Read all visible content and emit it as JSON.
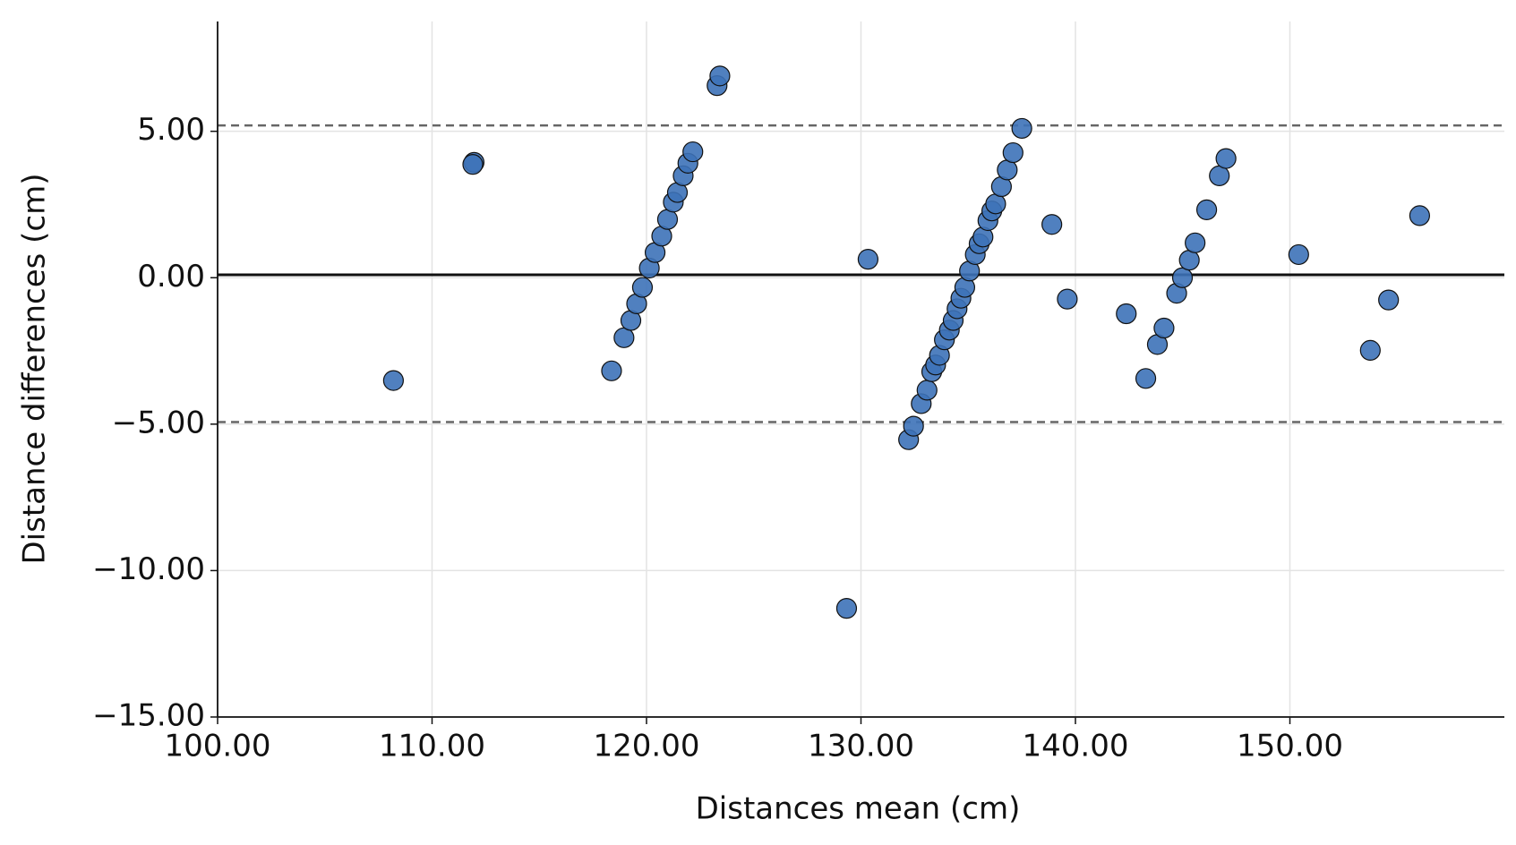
{
  "chart_data": {
    "type": "scatter",
    "x_label": "Distances mean (cm)",
    "y_label": "Distance differences (cm)",
    "xlim": [
      100,
      160
    ],
    "ylim": [
      -15,
      8.75
    ],
    "xticks": [
      {
        "value": 100,
        "label": "100.00"
      },
      {
        "value": 110,
        "label": "110.00"
      },
      {
        "value": 120,
        "label": "120.00"
      },
      {
        "value": 130,
        "label": "130.00"
      },
      {
        "value": 140,
        "label": "140.00"
      },
      {
        "value": 150,
        "label": "150.00"
      }
    ],
    "yticks": [
      {
        "value": -15,
        "label": "−15.00"
      },
      {
        "value": -10,
        "label": "−10.00"
      },
      {
        "value": -5,
        "label": "−5.00"
      },
      {
        "value": 0,
        "label": "0.00"
      },
      {
        "value": 5,
        "label": "5.00"
      }
    ],
    "grid": true,
    "reference_lines": {
      "mean": 0.1,
      "upper_loa": 5.2,
      "lower_loa": -4.93,
      "mean_color": "#111111",
      "loa_color": "#666666"
    },
    "series": [
      {
        "color": "#3d72b8",
        "x": [
          108.2,
          111.96,
          111.9,
          118.37,
          118.95,
          119.27,
          119.54,
          119.81,
          120.13,
          120.4,
          120.71,
          120.98,
          121.25,
          121.44,
          121.71,
          121.93,
          122.16,
          123.29,
          123.42,
          129.33,
          130.33,
          132.22,
          132.45,
          132.81,
          133.08,
          133.3,
          133.48,
          133.66,
          133.89,
          134.12,
          134.3,
          134.48,
          134.66,
          134.84,
          135.06,
          135.33,
          135.51,
          135.69,
          135.92,
          136.1,
          136.28,
          136.55,
          136.82,
          137.09,
          137.5,
          138.9,
          139.62,
          142.37,
          143.28,
          143.82,
          144.13,
          144.72,
          144.99,
          145.31,
          145.58,
          146.12,
          146.71,
          147.02,
          150.41,
          153.75,
          154.6,
          156.05
        ],
        "values": [
          -3.51,
          3.94,
          3.87,
          -3.18,
          -2.05,
          -1.46,
          -0.89,
          -0.33,
          0.33,
          0.86,
          1.42,
          1.99,
          2.58,
          2.91,
          3.48,
          3.91,
          4.3,
          6.56,
          6.89,
          -11.29,
          0.63,
          -5.53,
          -5.07,
          -4.3,
          -3.84,
          -3.21,
          -2.98,
          -2.65,
          -2.12,
          -1.79,
          -1.46,
          -1.06,
          -0.7,
          -0.33,
          0.23,
          0.79,
          1.16,
          1.39,
          1.95,
          2.28,
          2.52,
          3.11,
          3.68,
          4.27,
          5.1,
          1.82,
          -0.73,
          -1.23,
          -3.44,
          -2.28,
          -1.72,
          -0.53,
          0,
          0.6,
          1.19,
          2.32,
          3.48,
          4.07,
          0.79,
          -2.48,
          -0.76,
          2.12
        ]
      }
    ]
  }
}
